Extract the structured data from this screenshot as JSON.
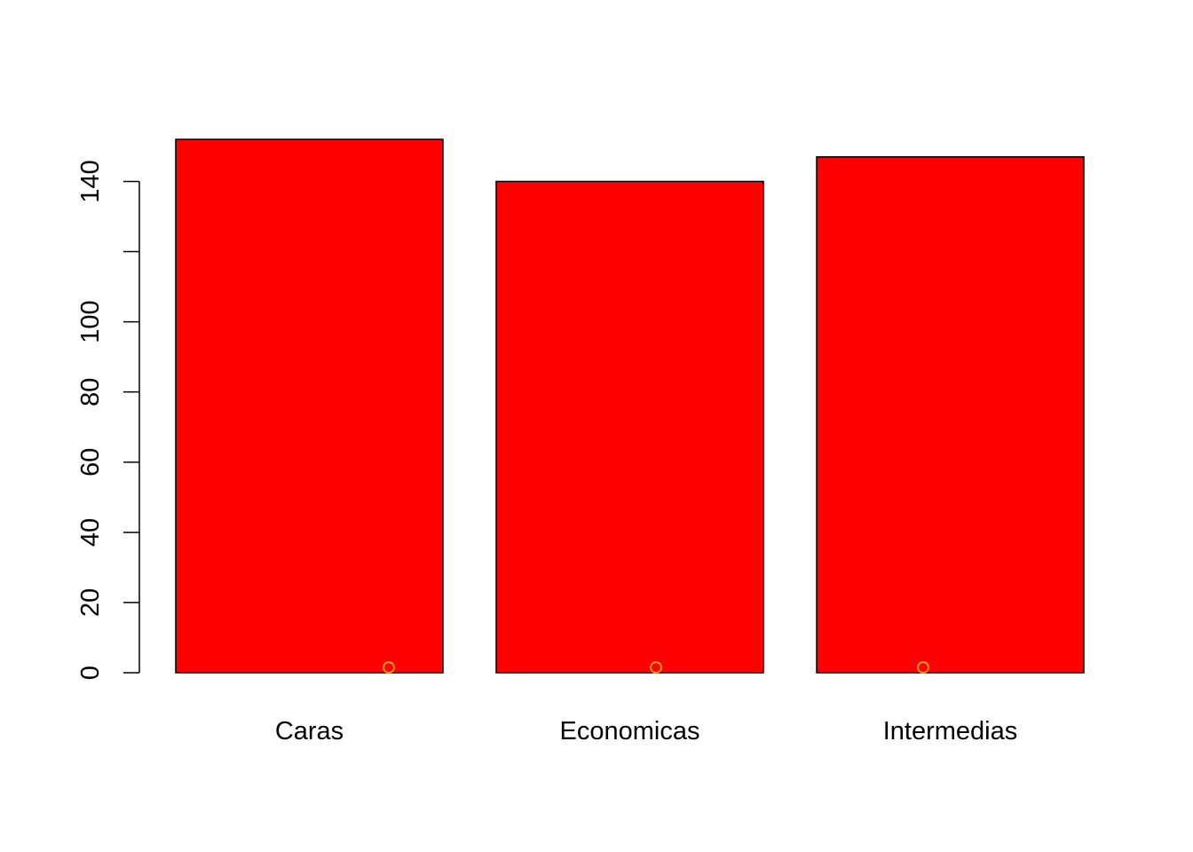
{
  "chart_data": {
    "type": "bar",
    "title": "",
    "xlabel": "",
    "ylabel": "",
    "categories": [
      "Caras",
      "Economicas",
      "Intermedias"
    ],
    "values": [
      152,
      140,
      147
    ],
    "ylim": [
      0,
      152
    ],
    "yticks": [
      0,
      20,
      40,
      60,
      80,
      100,
      120,
      140
    ],
    "ytick_labels": [
      "0",
      "20",
      "40",
      "60",
      "80",
      "100",
      "",
      "140"
    ],
    "grid": false,
    "legend": "none",
    "bar_color": "#ff0000",
    "bar_border_color": "#000000",
    "overlay_points": {
      "type": "scatter",
      "x": [
        1,
        2,
        3
      ],
      "y": [
        1,
        1,
        1
      ],
      "color": "#ffa500",
      "shape": "open-circle"
    }
  }
}
